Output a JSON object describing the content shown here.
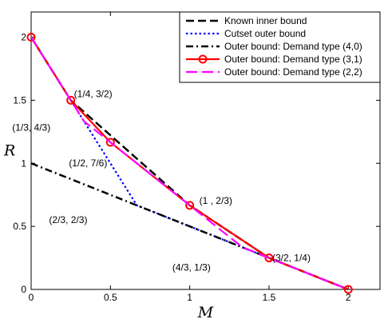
{
  "chart_data": {
    "type": "line",
    "xlabel": "M",
    "ylabel": "R",
    "xlim": [
      0,
      2.2
    ],
    "ylim": [
      0,
      2.2
    ],
    "xticks": [
      0,
      0.5,
      1,
      1.5,
      2
    ],
    "yticks": [
      0,
      0.5,
      1,
      1.5,
      2
    ],
    "xtick_labels": [
      "0",
      "0.5",
      "1",
      "1.5",
      "2"
    ],
    "ytick_labels": [
      "0",
      "0.5",
      "1",
      "1.5",
      "2"
    ],
    "grid": false,
    "legend_position": "top-right",
    "series": [
      {
        "name": "Known inner bound",
        "style": "dashed",
        "color": "#000000",
        "points": [
          [
            0,
            2
          ],
          [
            0.25,
            1.5
          ],
          [
            1,
            0.6667
          ],
          [
            1.5,
            0.25
          ],
          [
            2,
            0
          ]
        ]
      },
      {
        "name": "Cutset outer bound",
        "style": "dotted",
        "color": "#0000ff",
        "points": [
          [
            0,
            2
          ],
          [
            0.25,
            1.5
          ],
          [
            0.6667,
            0.6667
          ],
          [
            1.3333,
            0.3333
          ],
          [
            2,
            0
          ]
        ]
      },
      {
        "name": "Outer bound: Demand type (4,0)",
        "style": "dashdot",
        "color": "#000000",
        "points": [
          [
            0,
            1
          ],
          [
            1.3333,
            0.3333
          ],
          [
            2,
            0
          ]
        ]
      },
      {
        "name": "Outer bound: Demand type (3,1)",
        "style": "solid-circle",
        "color": "#ff0000",
        "points": [
          [
            0,
            2
          ],
          [
            0.25,
            1.5
          ],
          [
            0.5,
            1.1667
          ],
          [
            1,
            0.6667
          ],
          [
            1.5,
            0.25
          ],
          [
            2,
            0
          ]
        ]
      },
      {
        "name": "Outer bound: Demand type (2,2)",
        "style": "dashed",
        "color": "#ff00ff",
        "points": [
          [
            0,
            2
          ],
          [
            0.25,
            1.5
          ],
          [
            0.3333,
            1.3333
          ],
          [
            0.5,
            1.1667
          ],
          [
            1,
            0.6667
          ],
          [
            1.3333,
            0.3333
          ],
          [
            1.5,
            0.25
          ],
          [
            2,
            0
          ]
        ]
      }
    ],
    "annotations": [
      {
        "text": "(1/4, 3/2)",
        "x": 0.25,
        "y": 1.5
      },
      {
        "text": "(1/3, 4/3)",
        "x": 0.3333,
        "y": 1.3333
      },
      {
        "text": "(1/2, 7/6)",
        "x": 0.5,
        "y": 1.1667
      },
      {
        "text": "(1  , 2/3)",
        "x": 1,
        "y": 0.6667
      },
      {
        "text": "(2/3, 2/3)",
        "x": 0.6667,
        "y": 0.6667
      },
      {
        "text": "(4/3, 1/3)",
        "x": 1.3333,
        "y": 0.3333
      },
      {
        "text": "(3/2, 1/4)",
        "x": 1.5,
        "y": 0.25
      }
    ]
  }
}
